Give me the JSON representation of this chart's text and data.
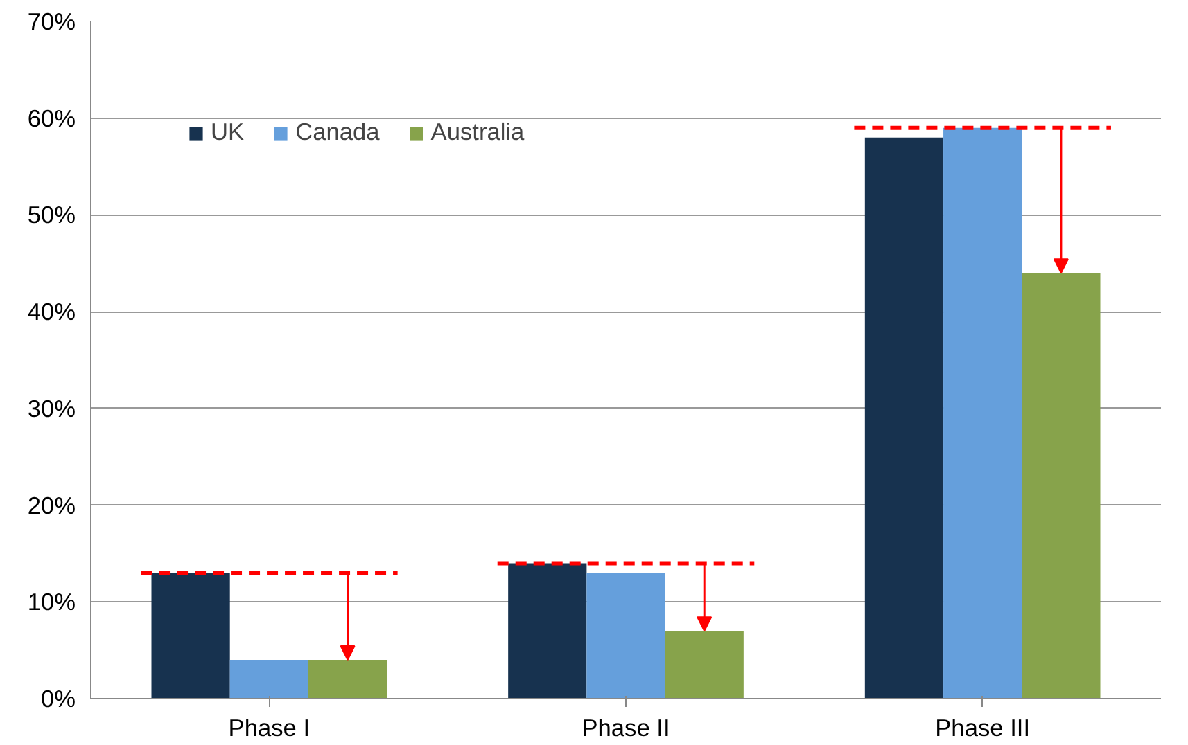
{
  "chart_data": {
    "type": "bar",
    "categories": [
      "Phase I",
      "Phase II",
      "Phase III"
    ],
    "series": [
      {
        "name": "UK",
        "color": "#17324f",
        "values": [
          13,
          14,
          58
        ]
      },
      {
        "name": "Canada",
        "color": "#659fdc",
        "values": [
          4,
          13,
          59
        ]
      },
      {
        "name": "Australia",
        "color": "#87a34b",
        "values": [
          4,
          7,
          44
        ]
      }
    ],
    "ylim": [
      0,
      70
    ],
    "yticks": [
      {
        "value": 0,
        "label": "0%"
      },
      {
        "value": 10,
        "label": "10%"
      },
      {
        "value": 20,
        "label": "20%"
      },
      {
        "value": 30,
        "label": "30%"
      },
      {
        "value": 40,
        "label": "40%"
      },
      {
        "value": 50,
        "label": "50%"
      },
      {
        "value": 60,
        "label": "60%"
      },
      {
        "value": 70,
        "label": "70%"
      }
    ],
    "ref_lines": [
      {
        "axis": "y",
        "value": 13,
        "color": "#ff0000",
        "line_style": "dashed"
      },
      {
        "axis": "y",
        "value": 14,
        "color": "#ff0000",
        "line_style": "dashed"
      },
      {
        "axis": "y",
        "value": 59,
        "color": "#ff0000",
        "line_style": "dashed"
      }
    ],
    "grid": "y",
    "legend": "top left"
  }
}
